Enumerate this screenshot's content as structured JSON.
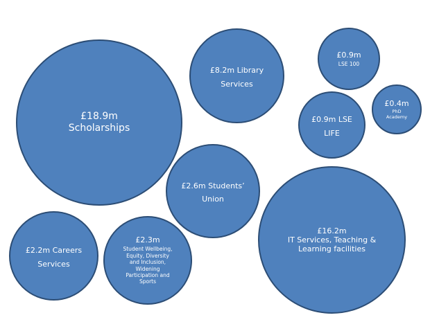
{
  "bubbles": {
    "scholarships": {
      "amount": "£18.9m",
      "label": "Scholarships"
    },
    "library": {
      "amount": "£8.2m",
      "label": " Library Services"
    },
    "lse100": {
      "amount": "£0.9m",
      "label": "LSE 100"
    },
    "phd": {
      "amount": "£0.4m",
      "label": "PhD\nAcademy"
    },
    "life": {
      "amount": "£0.9m",
      "label": " LSE\nLIFE"
    },
    "union": {
      "amount": "£2.6m",
      "label": " Students’\nUnion"
    },
    "it": {
      "amount": "£16.2m",
      "label": "IT Services, Teaching &\nLearning facilities"
    },
    "careers": {
      "amount": "£2.2m",
      "label": " Careers\nServices"
    },
    "wellbeing": {
      "amount": "£2.3m",
      "label": "Student Wellbeing,\nEquity, Diversity\nand Inclusion,\nWidening\nParticipation and\nSports"
    }
  },
  "colors": {
    "fill": "#4f81bd",
    "stroke": "#2c4d75",
    "text": "#ffffff"
  }
}
